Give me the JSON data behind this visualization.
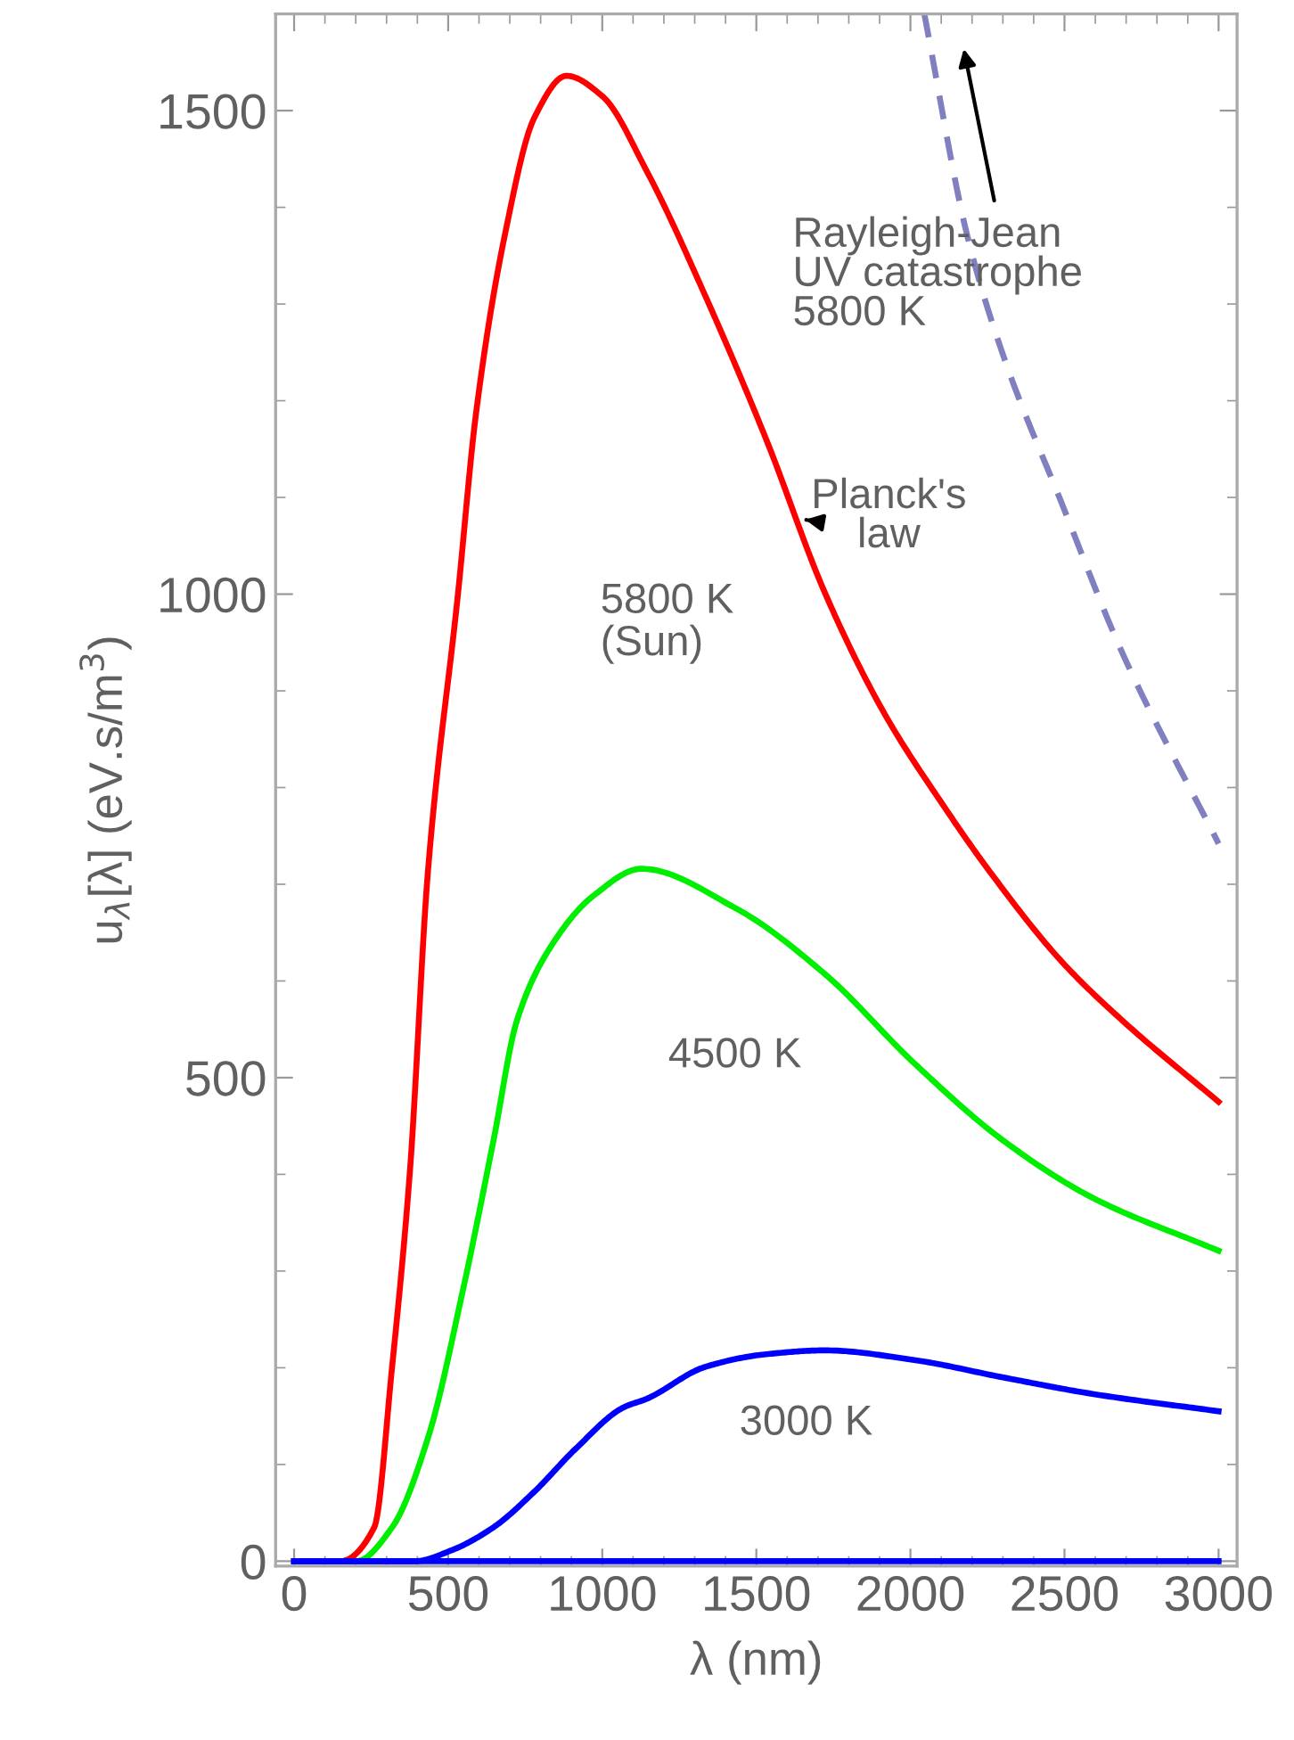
{
  "chart_data": {
    "type": "line",
    "xlabel": "λ (nm)",
    "ylabel": "u$_{λ}$[λ] (eV.s/m$^{3}$)",
    "xlim": [
      -60,
      3060
    ],
    "ylim": [
      -5,
      1600
    ],
    "xticks": [
      0,
      500,
      1000,
      1500,
      2000,
      2500,
      3000
    ],
    "yticks": [
      0,
      500,
      1000,
      1500
    ],
    "grid": false,
    "legend": false,
    "line_style": "solid",
    "series": [
      {
        "name": "5800 K\n(Sun)",
        "color": "#ff0000",
        "x": [
          0,
          150,
          260,
          318,
          376,
          434,
          532,
          590,
          683,
          780,
          884,
          1000,
          1145,
          1335,
          1532,
          1723,
          1913,
          2110,
          2260,
          2491,
          2688,
          3000
        ],
        "values": [
          0,
          0,
          35,
          201,
          404,
          712,
          1001,
          1186,
          1370,
          1493,
          1536,
          1515,
          1437,
          1308,
          1160,
          1001,
          878,
          780,
          712,
          620,
          559,
          475
        ]
      },
      {
        "name": "4500 K",
        "color": "#00ee00",
        "x": [
          0,
          202,
          318,
          434,
          549,
          647,
          723,
          838,
          971,
          1127,
          1434,
          1723,
          2012,
          2301,
          2590,
          3000
        ],
        "values": [
          0,
          0,
          35,
          127,
          282,
          435,
          559,
          638,
          688,
          716,
          675,
          607,
          515,
          435,
          376,
          321
        ]
      },
      {
        "name": "3000 K",
        "color": "#0000ff",
        "x": [
          0,
          393,
          509,
          647,
          780,
          913,
          1069,
          1145,
          1335,
          1532,
          1723,
          2012,
          2301,
          2590,
          3000
        ],
        "values": [
          0,
          0,
          11,
          35,
          72,
          116,
          159,
          168,
          201,
          214,
          218,
          208,
          190,
          173,
          155
        ]
      },
      {
        "color": "#0000ff",
        "x": [
          0,
          3000
        ],
        "values": [
          0,
          0
        ]
      },
      {
        "color": "#8080c0",
        "line_style": "dashed",
        "x": [
          2045,
          2185,
          2301,
          2491,
          2688,
          3000
        ],
        "values": [
          1600,
          1370,
          1247,
          1094,
          939,
          742
        ]
      }
    ],
    "annotations": [
      "Rayleigh-Jean\nUV catastrophe\n5800 K",
      {
        "text": "Planck's\nlaw",
        "x": 1659,
        "y": 1077
      }
    ]
  }
}
